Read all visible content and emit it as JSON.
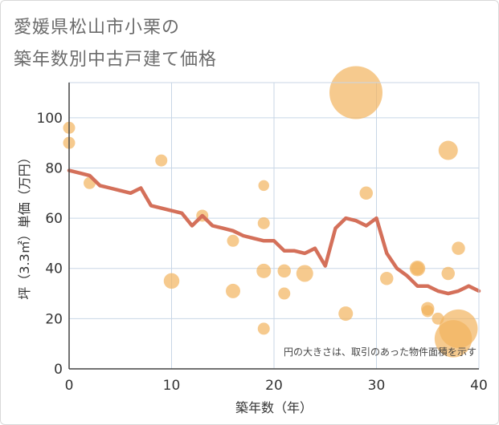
{
  "header": {
    "title_line1": "愛媛県松山市小栗の",
    "title_line2": "築年数別中古戸建て価格"
  },
  "chart_data": {
    "type": "scatter",
    "title": "愛媛県松山市小栗の築年数別中古戸建て価格",
    "xlabel": "築年数（年）",
    "ylabel": "坪（3.3㎡）単価（万円）",
    "xlim": [
      0,
      40
    ],
    "ylim": [
      0,
      114
    ],
    "x_ticks": [
      0,
      10,
      20,
      30,
      40
    ],
    "y_ticks": [
      0,
      20,
      40,
      60,
      80,
      100
    ],
    "grid": true,
    "note": "円の大きさは、取引のあった物件面積を示す",
    "colors": {
      "bubble": "#f2b35e",
      "line": "#d4705a",
      "grid": "#c8d6e6"
    },
    "series": [
      {
        "type": "scatter",
        "points": [
          {
            "x": 0,
            "y": 96,
            "size": 1
          },
          {
            "x": 0,
            "y": 90,
            "size": 1
          },
          {
            "x": 2,
            "y": 74,
            "size": 1
          },
          {
            "x": 9,
            "y": 83,
            "size": 1
          },
          {
            "x": 10,
            "y": 35,
            "size": 1.3
          },
          {
            "x": 13,
            "y": 61,
            "size": 1
          },
          {
            "x": 16,
            "y": 51,
            "size": 1
          },
          {
            "x": 16,
            "y": 31,
            "size": 1.2
          },
          {
            "x": 19,
            "y": 73,
            "size": 0.9
          },
          {
            "x": 19,
            "y": 58,
            "size": 1
          },
          {
            "x": 19,
            "y": 39,
            "size": 1.2
          },
          {
            "x": 19,
            "y": 16,
            "size": 1
          },
          {
            "x": 21,
            "y": 39,
            "size": 1.1
          },
          {
            "x": 21,
            "y": 30,
            "size": 1
          },
          {
            "x": 23,
            "y": 38,
            "size": 1.4
          },
          {
            "x": 27,
            "y": 22,
            "size": 1.2
          },
          {
            "x": 28,
            "y": 110,
            "size": 4.4
          },
          {
            "x": 29,
            "y": 70,
            "size": 1.1
          },
          {
            "x": 31,
            "y": 36,
            "size": 1.1
          },
          {
            "x": 34,
            "y": 40,
            "size": 1.3
          },
          {
            "x": 34,
            "y": 40,
            "size": 1.1
          },
          {
            "x": 35,
            "y": 24,
            "size": 1.1
          },
          {
            "x": 35,
            "y": 23,
            "size": 1
          },
          {
            "x": 36,
            "y": 20,
            "size": 1
          },
          {
            "x": 37,
            "y": 87,
            "size": 1.6
          },
          {
            "x": 37,
            "y": 38,
            "size": 1.1
          },
          {
            "x": 38,
            "y": 48,
            "size": 1.1
          },
          {
            "x": 37.5,
            "y": 12,
            "size": 3.1
          },
          {
            "x": 38,
            "y": 16,
            "size": 3.2
          }
        ]
      },
      {
        "type": "line",
        "points": [
          {
            "x": 0,
            "y": 79
          },
          {
            "x": 1,
            "y": 78
          },
          {
            "x": 2,
            "y": 77
          },
          {
            "x": 3,
            "y": 73
          },
          {
            "x": 4,
            "y": 72
          },
          {
            "x": 5,
            "y": 71
          },
          {
            "x": 6,
            "y": 70
          },
          {
            "x": 7,
            "y": 72
          },
          {
            "x": 8,
            "y": 65
          },
          {
            "x": 9,
            "y": 64
          },
          {
            "x": 10,
            "y": 63
          },
          {
            "x": 11,
            "y": 62
          },
          {
            "x": 12,
            "y": 57
          },
          {
            "x": 13,
            "y": 61
          },
          {
            "x": 14,
            "y": 57
          },
          {
            "x": 15,
            "y": 56
          },
          {
            "x": 16,
            "y": 55
          },
          {
            "x": 17,
            "y": 53
          },
          {
            "x": 18,
            "y": 52
          },
          {
            "x": 19,
            "y": 51
          },
          {
            "x": 20,
            "y": 51
          },
          {
            "x": 21,
            "y": 47
          },
          {
            "x": 22,
            "y": 47
          },
          {
            "x": 23,
            "y": 46
          },
          {
            "x": 24,
            "y": 48
          },
          {
            "x": 25,
            "y": 41
          },
          {
            "x": 26,
            "y": 56
          },
          {
            "x": 27,
            "y": 60
          },
          {
            "x": 28,
            "y": 59
          },
          {
            "x": 29,
            "y": 57
          },
          {
            "x": 30,
            "y": 60
          },
          {
            "x": 31,
            "y": 46
          },
          {
            "x": 32,
            "y": 40
          },
          {
            "x": 33,
            "y": 37
          },
          {
            "x": 34,
            "y": 33
          },
          {
            "x": 35,
            "y": 33
          },
          {
            "x": 36,
            "y": 31
          },
          {
            "x": 37,
            "y": 30
          },
          {
            "x": 38,
            "y": 31
          },
          {
            "x": 39,
            "y": 33
          },
          {
            "x": 40,
            "y": 31
          }
        ]
      }
    ]
  }
}
